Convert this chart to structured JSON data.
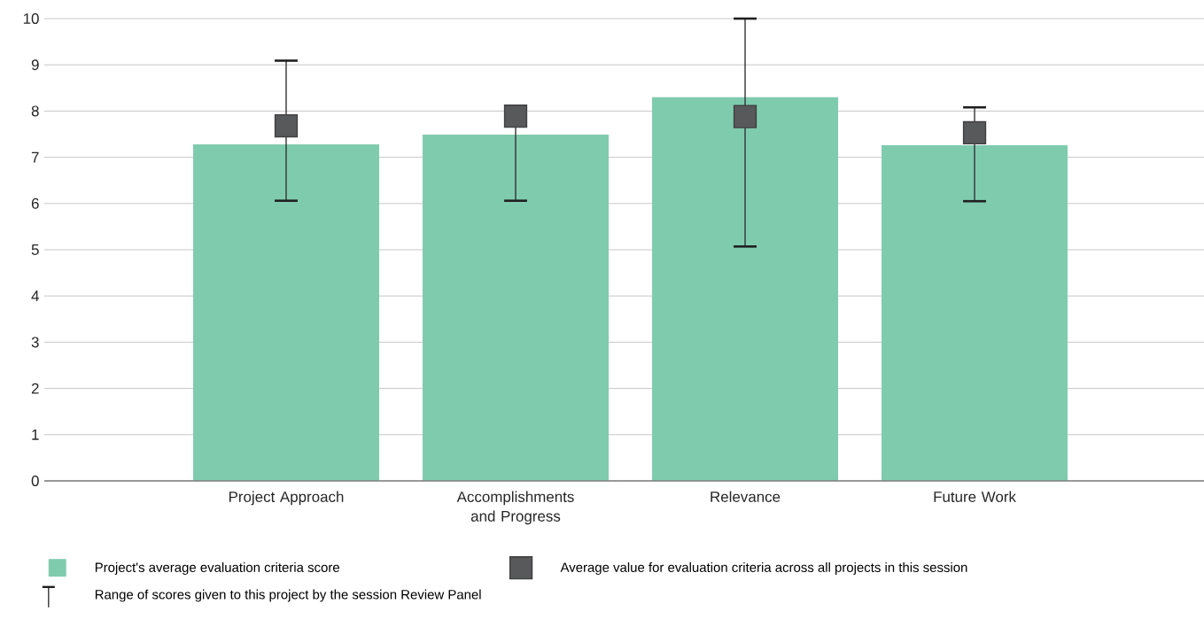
{
  "chart_data": {
    "type": "bar",
    "categories": [
      "Project Approach",
      "Accomplishments and Progress",
      "Relevance",
      "Future Work"
    ],
    "series": [
      {
        "name": "Project's average evaluation criteria score",
        "color": "#7fcbae",
        "values": [
          7.28,
          7.49,
          8.3,
          7.26
        ]
      },
      {
        "name": "Average value for evaluation criteria across all projects in this session",
        "type": "scatter",
        "marker": "square",
        "color": "#58595b",
        "values": [
          7.68,
          7.89,
          7.88,
          7.53
        ],
        "errors": [
          [
            6.06,
            9.09
          ],
          [
            6.06,
            7.89
          ],
          [
            5.07,
            10
          ],
          [
            6.05,
            8.08
          ]
        ]
      }
    ],
    "annotations": [
      "Range of scores given to this project by the session Review Panel"
    ],
    "ylim": [
      0,
      10
    ],
    "yticks": [
      0,
      1,
      2,
      3,
      4,
      5,
      6,
      7,
      8,
      9,
      10
    ],
    "grid": "y",
    "legend": "bottom"
  }
}
